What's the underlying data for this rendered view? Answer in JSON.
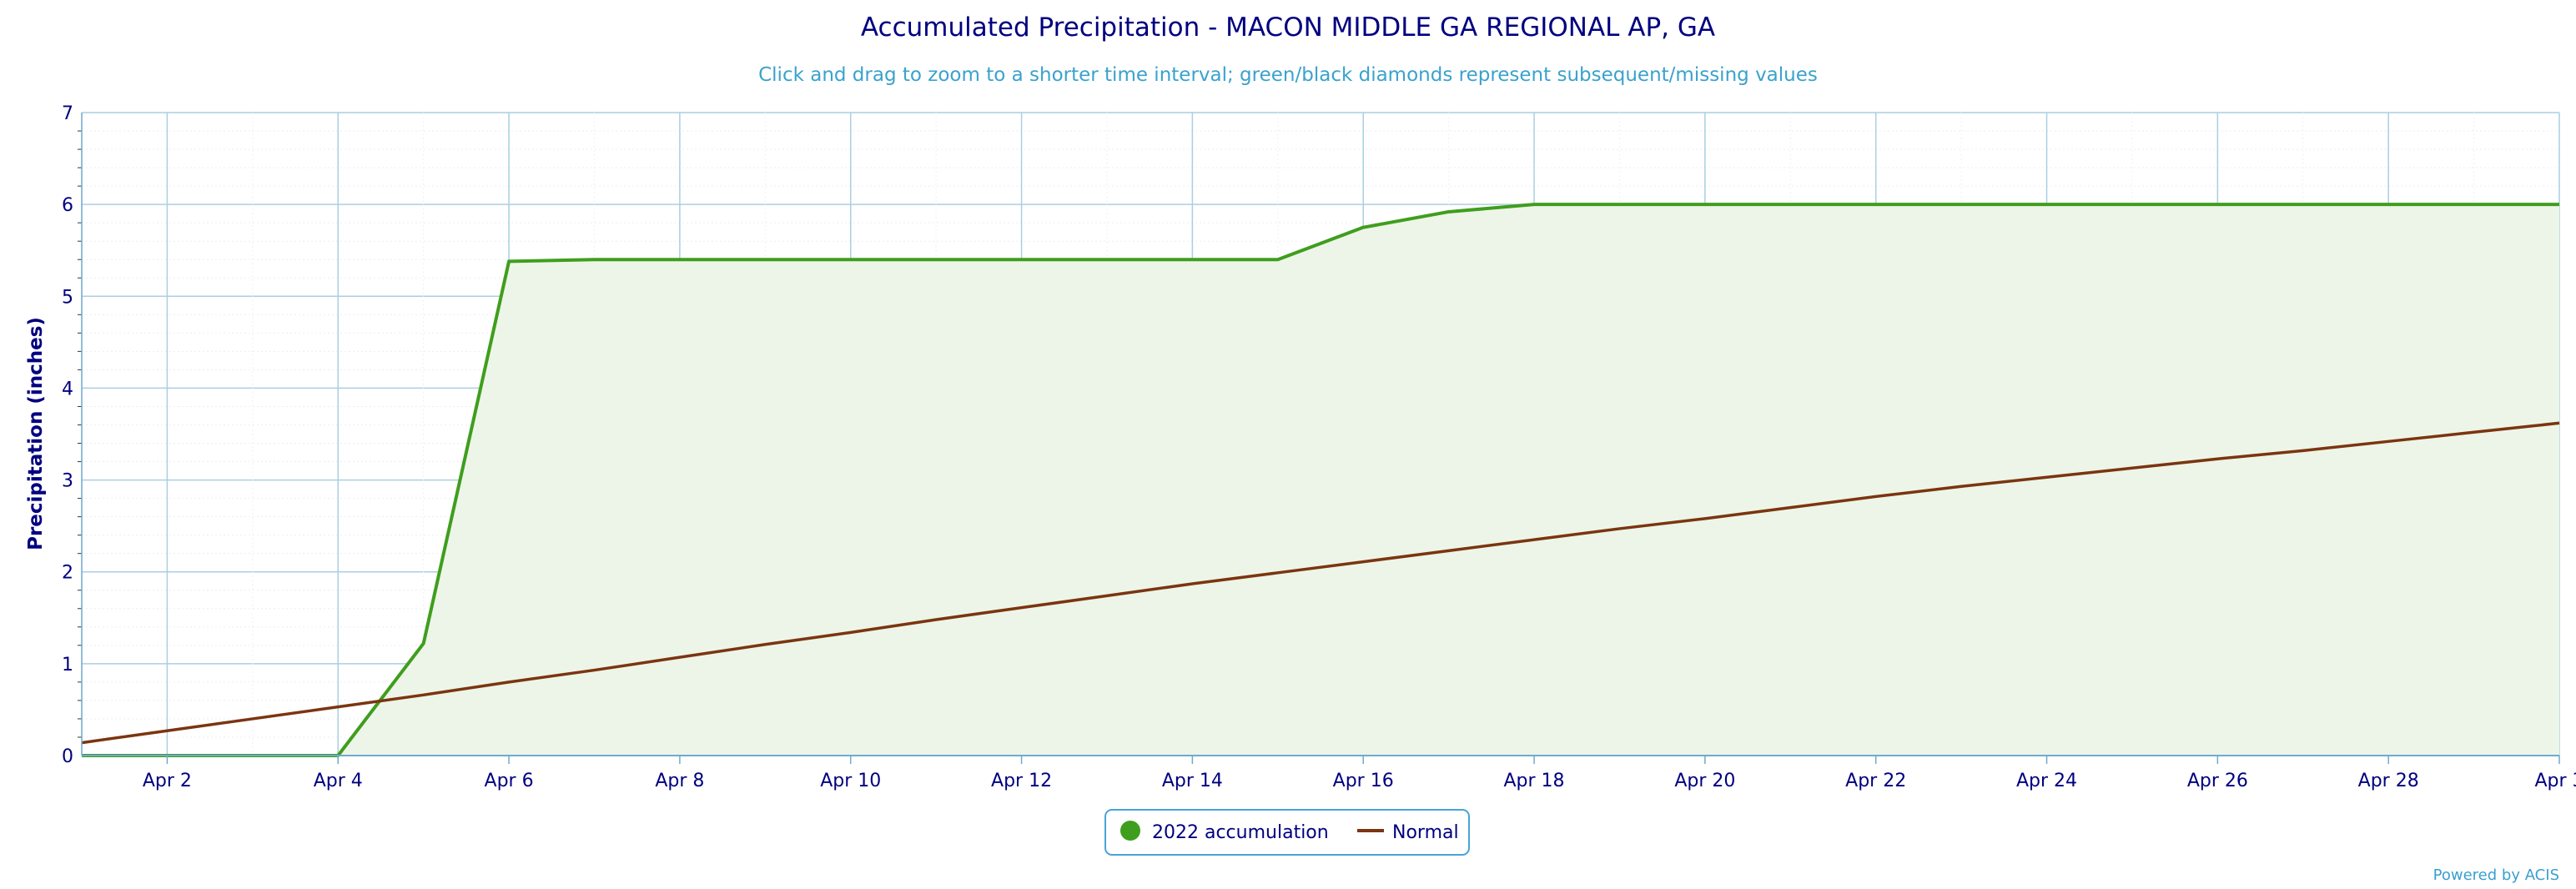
{
  "chart_data": {
    "type": "area",
    "title": "Accumulated Precipitation - MACON MIDDLE GA REGIONAL AP, GA",
    "subtitle": "Click and drag to zoom to a shorter time interval; green/black diamonds represent subsequent/missing values",
    "xlabel": "",
    "ylabel": "Precipitation (inches)",
    "x_ticks": [
      "Apr 2",
      "Apr 4",
      "Apr 6",
      "Apr 8",
      "Apr 10",
      "Apr 12",
      "Apr 14",
      "Apr 16",
      "Apr 18",
      "Apr 20",
      "Apr 22",
      "Apr 24",
      "Apr 26",
      "Apr 28",
      "Apr 3"
    ],
    "y_ticks": [
      "0",
      "1",
      "2",
      "3",
      "4",
      "5",
      "6",
      "7"
    ],
    "xlim": [
      1,
      30
    ],
    "ylim": [
      0,
      7
    ],
    "grid": true,
    "legend_position": "bottom-center",
    "series": [
      {
        "name": "2022 accumulation",
        "color": "#3f9e1d",
        "fill": "#edf5e8",
        "x": [
          1,
          2,
          3,
          4,
          5,
          6,
          7,
          8,
          9,
          10,
          11,
          12,
          13,
          14,
          15,
          16,
          17,
          18,
          19,
          20,
          21,
          22,
          23,
          24,
          25,
          26,
          27,
          28,
          29,
          30
        ],
        "y": [
          0,
          0,
          0,
          0,
          1.22,
          5.38,
          5.4,
          5.4,
          5.4,
          5.4,
          5.4,
          5.4,
          5.4,
          5.4,
          5.4,
          5.75,
          5.92,
          6.0,
          6.0,
          6.0,
          6.0,
          6.0,
          6.0,
          6.0,
          6.0,
          6.0,
          6.0,
          6.0,
          6.0,
          6.0
        ]
      },
      {
        "name": "Normal",
        "color": "#7b3510",
        "x": [
          1,
          2,
          3,
          4,
          5,
          6,
          7,
          8,
          9,
          10,
          11,
          12,
          13,
          14,
          15,
          16,
          17,
          18,
          19,
          20,
          21,
          22,
          23,
          24,
          25,
          26,
          27,
          28,
          29,
          30
        ],
        "y": [
          0.14,
          0.27,
          0.4,
          0.53,
          0.66,
          0.8,
          0.93,
          1.07,
          1.21,
          1.34,
          1.48,
          1.61,
          1.74,
          1.87,
          1.99,
          2.11,
          2.23,
          2.35,
          2.47,
          2.58,
          2.7,
          2.82,
          2.93,
          3.03,
          3.13,
          3.23,
          3.32,
          3.42,
          3.52,
          3.62
        ]
      }
    ]
  },
  "credit": "Powered by ACIS",
  "colors": {
    "text": "#000080",
    "subtitle": "#3aa2cc",
    "grid": "#a9cfe2",
    "axis": "#6fa9cf",
    "legend_border": "#4aa3d6",
    "credit": "#3a9fd0"
  }
}
